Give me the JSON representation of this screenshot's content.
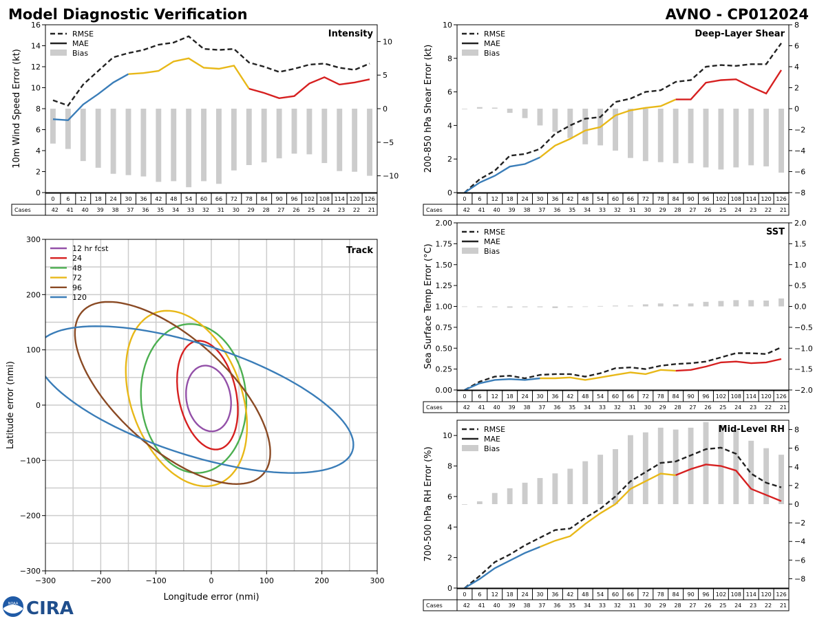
{
  "header": {
    "title": "Model Diagnostic Verification",
    "storm": "AVNO - CP012024"
  },
  "logo": {
    "text": "CIRA",
    "badge": "NOAA"
  },
  "hours": [
    0,
    6,
    12,
    18,
    24,
    30,
    36,
    42,
    48,
    54,
    60,
    66,
    72,
    78,
    84,
    90,
    96,
    102,
    108,
    114,
    120,
    126
  ],
  "cases_label": "Cases",
  "cases": [
    42,
    41,
    40,
    39,
    38,
    37,
    36,
    35,
    34,
    33,
    32,
    31,
    30,
    29,
    28,
    27,
    26,
    25,
    24,
    23,
    22,
    21
  ],
  "colors": {
    "rmse": "#222222",
    "seg1": "#3a7db8",
    "seg2": "#e8b818",
    "seg3": "#d62020",
    "bias": "#cccccc",
    "grid": "#cccccc"
  },
  "legend_labels": [
    "RMSE",
    "MAE",
    "Bias"
  ],
  "chart_data": [
    {
      "id": "intensity",
      "type": "line",
      "title": "Intensity",
      "ylabel": "10m Wind Speed Error (kt)",
      "ylim": [
        0,
        16
      ],
      "yticks": [
        0,
        2,
        4,
        6,
        8,
        10,
        12,
        14,
        16
      ],
      "y2lim": [
        -12.5,
        12.5
      ],
      "y2ticks": [
        -10,
        -5,
        0,
        5,
        10
      ],
      "y2ticklabels": [
        "−10",
        "−5",
        "0",
        "5",
        "10"
      ],
      "rmse": [
        8.8,
        8.3,
        10.3,
        11.6,
        12.9,
        13.3,
        13.6,
        14.1,
        14.3,
        14.9,
        13.7,
        13.6,
        13.7,
        12.4,
        12.0,
        11.5,
        11.8,
        12.2,
        12.3,
        11.9,
        11.7,
        12.3
      ],
      "mae": [
        7.0,
        6.9,
        8.4,
        9.4,
        10.5,
        11.3,
        11.4,
        11.6,
        12.5,
        12.8,
        11.9,
        11.8,
        12.1,
        9.9,
        9.5,
        9.0,
        9.2,
        10.4,
        11.0,
        10.3,
        10.5,
        10.8
      ],
      "bias": [
        -5.2,
        -6.0,
        -7.8,
        -8.8,
        -9.7,
        -9.9,
        -10.1,
        -10.9,
        -10.8,
        -11.7,
        -10.8,
        -11.2,
        -9.2,
        -8.4,
        -8.0,
        -7.4,
        -6.7,
        -6.8,
        -8.1,
        -9.3,
        -9.4,
        -10.0
      ],
      "mae_segments": [
        0,
        5,
        13,
        21
      ]
    },
    {
      "id": "shear",
      "type": "line",
      "title": "Deep-Layer Shear",
      "ylabel": "200-850 hPa Shear Error (kt)",
      "ylim": [
        0,
        10
      ],
      "yticks": [
        0,
        2,
        4,
        6,
        8,
        10
      ],
      "y2lim": [
        -8,
        8
      ],
      "y2ticks": [
        -8,
        -6,
        -4,
        -2,
        0,
        2,
        4,
        6,
        8
      ],
      "y2ticklabels": [
        "−8",
        "−6",
        "−4",
        "−2",
        "0",
        "2",
        "4",
        "6",
        "8"
      ],
      "rmse": [
        0,
        0.8,
        1.3,
        2.2,
        2.3,
        2.6,
        3.5,
        4.0,
        4.4,
        4.5,
        5.4,
        5.6,
        6.0,
        6.1,
        6.6,
        6.7,
        7.5,
        7.6,
        7.55,
        7.65,
        7.65,
        8.9
      ],
      "mae": [
        0,
        0.6,
        1.0,
        1.55,
        1.7,
        2.1,
        2.8,
        3.2,
        3.7,
        3.9,
        4.6,
        4.9,
        5.05,
        5.15,
        5.55,
        5.55,
        6.55,
        6.7,
        6.75,
        6.3,
        5.9,
        7.3
      ],
      "bias": [
        0,
        0.15,
        0.1,
        -0.4,
        -0.9,
        -1.6,
        -2.2,
        -2.8,
        -3.4,
        -3.5,
        -4.0,
        -4.7,
        -5.0,
        -5.1,
        -5.2,
        -5.2,
        -5.6,
        -5.8,
        -5.6,
        -5.4,
        -5.5,
        -6.1
      ],
      "mae_segments": [
        0,
        5,
        14,
        21
      ]
    },
    {
      "id": "sst",
      "type": "line",
      "title": "SST",
      "ylabel": "Sea Surface Temp Error (°C)",
      "ylim": [
        0,
        2
      ],
      "yticks": [
        0,
        0.25,
        0.5,
        0.75,
        1,
        1.25,
        1.5,
        1.75,
        2
      ],
      "yticklabels": [
        "0.00",
        "0.25",
        "0.50",
        "0.75",
        "1.00",
        "1.25",
        "1.50",
        "1.75",
        "2.00"
      ],
      "y2lim": [
        -2,
        2
      ],
      "y2ticks": [
        -2,
        -1.5,
        -1,
        -0.5,
        0,
        0.5,
        1,
        1.5,
        2
      ],
      "y2ticklabels": [
        "−2.0",
        "−1.5",
        "−1.0",
        "−0.5",
        "0.0",
        "0.5",
        "1.0",
        "1.5",
        "2.0"
      ],
      "rmse": [
        0,
        0.1,
        0.16,
        0.17,
        0.14,
        0.18,
        0.19,
        0.19,
        0.16,
        0.2,
        0.26,
        0.27,
        0.25,
        0.29,
        0.31,
        0.32,
        0.34,
        0.39,
        0.44,
        0.44,
        0.43,
        0.51
      ],
      "mae": [
        0,
        0.08,
        0.12,
        0.13,
        0.12,
        0.14,
        0.14,
        0.15,
        0.12,
        0.15,
        0.18,
        0.21,
        0.19,
        0.24,
        0.23,
        0.24,
        0.28,
        0.33,
        0.34,
        0.32,
        0.33,
        0.37
      ],
      "bias": [
        0,
        -0.02,
        -0.02,
        -0.03,
        -0.02,
        -0.02,
        -0.04,
        -0.02,
        -0.01,
        0.01,
        0.02,
        0.02,
        0.05,
        0.07,
        0.05,
        0.07,
        0.11,
        0.13,
        0.15,
        0.15,
        0.14,
        0.19
      ],
      "mae_segments": [
        0,
        5,
        14,
        21
      ]
    },
    {
      "id": "rh",
      "type": "line",
      "title": "Mid-Level RH",
      "ylabel": "700-500 hPa RH Error (%)",
      "ylim": [
        0,
        11
      ],
      "yticks": [
        0,
        2,
        4,
        6,
        8,
        10
      ],
      "y2lim": [
        -9,
        9
      ],
      "y2ticks": [
        -8,
        -6,
        -4,
        -2,
        0,
        2,
        4,
        6,
        8
      ],
      "y2ticklabels": [
        "−8",
        "−6",
        "−4",
        "−2",
        "0",
        "2",
        "4",
        "6",
        "8"
      ],
      "rmse": [
        0,
        0.8,
        1.7,
        2.2,
        2.8,
        3.3,
        3.8,
        3.9,
        4.6,
        5.2,
        6.0,
        7.0,
        7.6,
        8.2,
        8.3,
        8.7,
        9.1,
        9.2,
        8.8,
        7.5,
        6.9,
        6.6
      ],
      "mae": [
        0,
        0.6,
        1.3,
        1.8,
        2.3,
        2.7,
        3.1,
        3.4,
        4.2,
        4.9,
        5.5,
        6.5,
        7.0,
        7.5,
        7.4,
        7.8,
        8.1,
        8.0,
        7.7,
        6.5,
        6.1,
        5.7
      ],
      "bias": [
        0,
        0.3,
        1.2,
        1.7,
        2.3,
        2.8,
        3.3,
        3.8,
        4.6,
        5.3,
        5.9,
        7.4,
        7.7,
        8.2,
        8.0,
        8.2,
        8.8,
        8.5,
        8.0,
        6.8,
        6.0,
        5.3
      ],
      "mae_segments": [
        0,
        5,
        14,
        21
      ]
    }
  ],
  "track": {
    "title": "Track",
    "xlabel": "Longitude error (nmi)",
    "ylabel": "Latitude error (nmi)",
    "xlim": [
      -300,
      300
    ],
    "ylim": [
      -300,
      300
    ],
    "ticks": [
      -300,
      -200,
      -100,
      0,
      100,
      200,
      300
    ],
    "ticklabels": [
      "−300",
      "−200",
      "−100",
      "0",
      "100",
      "200",
      "300"
    ],
    "grid": [
      -250,
      -200,
      -150,
      -100,
      -50,
      0,
      50,
      100,
      150,
      200,
      250
    ],
    "ellipses": [
      {
        "label": "12 hr fcst",
        "color": "#9350a8",
        "cx": -5,
        "cy": 12,
        "a": 60,
        "b": 40,
        "angle": -80
      },
      {
        "label": "24",
        "color": "#d62020",
        "cx": -7,
        "cy": 18,
        "a": 100,
        "b": 52,
        "angle": -78
      },
      {
        "label": "48",
        "color": "#4caf50",
        "cx": -32,
        "cy": 12,
        "a": 135,
        "b": 95,
        "angle": -85
      },
      {
        "label": "72",
        "color": "#e8b818",
        "cx": -45,
        "cy": 12,
        "a": 165,
        "b": 100,
        "angle": -70
      },
      {
        "label": "96",
        "color": "#8a4a24",
        "cx": -70,
        "cy": 22,
        "a": 220,
        "b": 100,
        "angle": -42
      },
      {
        "label": "120",
        "color": "#3a7db8",
        "cx": -30,
        "cy": 10,
        "a": 300,
        "b": 100,
        "angle": -18
      }
    ]
  }
}
